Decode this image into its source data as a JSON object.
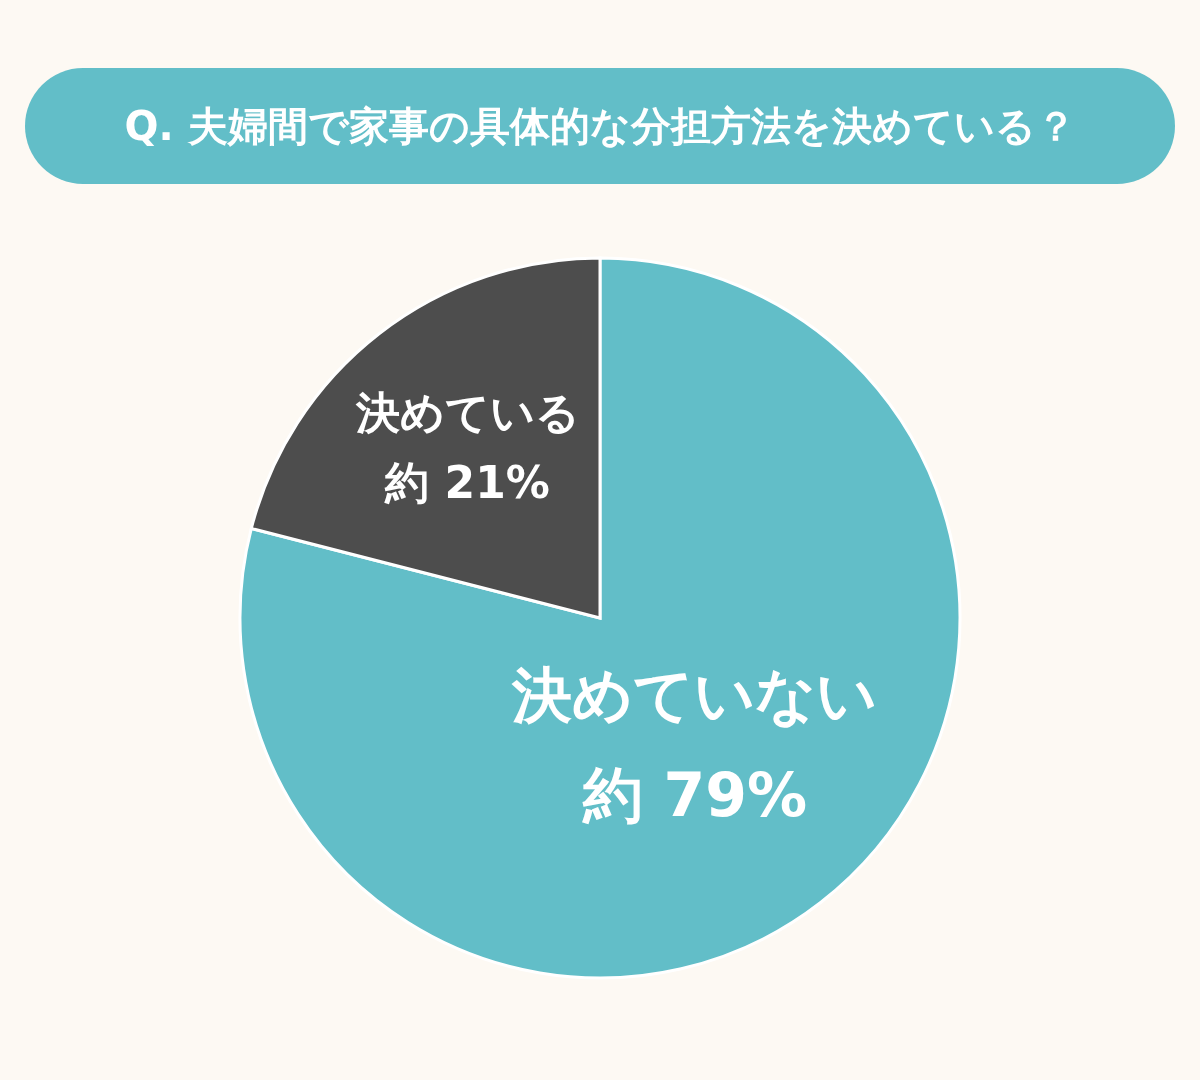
{
  "chart_data": {
    "type": "pie",
    "title": "Q. 夫婦間で家事の具体的な分担方法を決めている？",
    "categories": [
      "決めていない",
      "決めている"
    ],
    "values": [
      79,
      21
    ],
    "colors": [
      "#62bec8",
      "#4d4d4d"
    ],
    "value_labels": [
      "約 79%",
      "約 21%"
    ]
  }
}
